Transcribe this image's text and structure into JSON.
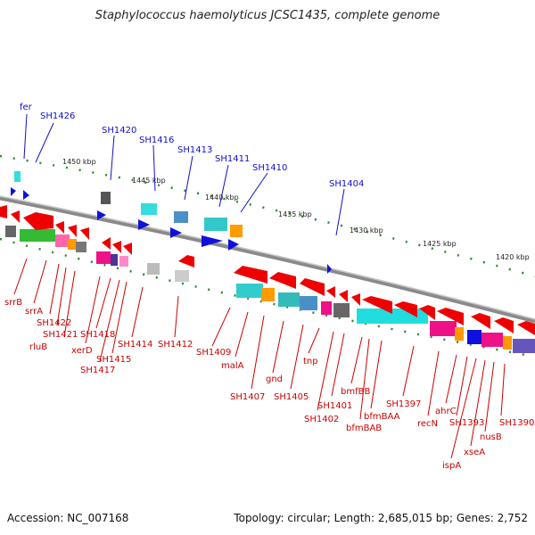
{
  "title": "Staphylococcus haemolyticus JCSC1435, complete genome",
  "footer": {
    "accession": "Accession: NC_007168",
    "topology": "Topology: circular; Length: 2,685,015 bp; Genes: 2,752"
  },
  "colors": {
    "forward_label": "#1010cc",
    "reverse_label": "#cc0000",
    "backbone": "#888888",
    "tick": "#2a8a2a"
  },
  "kbp_ticks": [
    "1450 kbp",
    "1445 kbp",
    "1440 kbp",
    "1435 kbp",
    "1430 kbp",
    "1425 kbp",
    "1420 kbp"
  ],
  "forward_genes": [
    "fer",
    "SH1426",
    "SH1420",
    "SH1416",
    "SH1413",
    "SH1411",
    "SH1410",
    "SH1404"
  ],
  "reverse_genes": [
    "srrB",
    "srrA",
    "SH1422",
    "rluB",
    "SH1421",
    "xerD",
    "SH1418",
    "SH1417",
    "SH1415",
    "SH1414",
    "SH1412",
    "SH1409",
    "malA",
    "SH1407",
    "gnd",
    "SH1405",
    "tnp",
    "SH1402",
    "SH1401",
    "bmfBB",
    "bfmBAB",
    "bfmBAA",
    "SH1397",
    "recN",
    "ahrC",
    "SH1393",
    "ispA",
    "xseA",
    "nusB",
    "SH1390"
  ]
}
